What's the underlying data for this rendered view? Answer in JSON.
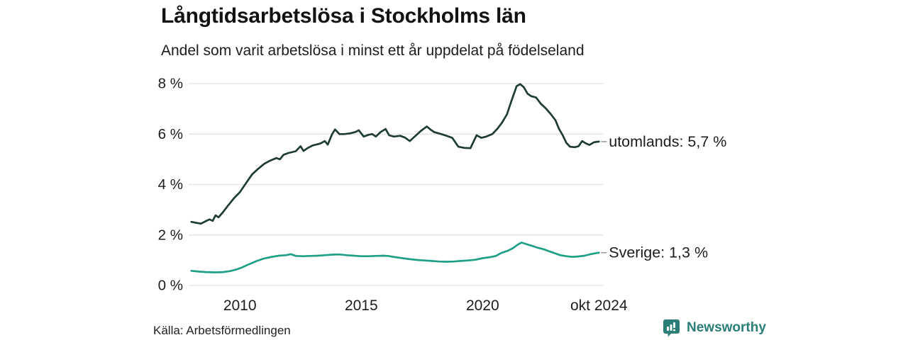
{
  "header": {
    "title": "Långtidsarbetslösa i Stockholms län",
    "subtitle": "Andel som varit arbetslösa i minst ett år uppdelat på födelseland"
  },
  "footer": {
    "source": "Källa: Arbetsförmedlingen",
    "brand": "Newsworthy"
  },
  "colors": {
    "series_utomlands": "#1f3b35",
    "series_sverige": "#1ea087",
    "grid": "#e3e3e3",
    "label_dash": "#999999",
    "brand_teal": "#2b7d78",
    "text": "#1d1d1d"
  },
  "chart_data": {
    "type": "line",
    "title": "Långtidsarbetslösa i Stockholms län",
    "subtitle": "Andel som varit arbetslösa i minst ett år uppdelat på födelseland",
    "source": "Källa: Arbetsförmedlingen",
    "xlabel": "",
    "ylabel": "",
    "grid": "horizontal",
    "legend_position": "end-of-line",
    "xlim": [
      2007.95,
      2024.87
    ],
    "ylim": [
      0,
      8
    ],
    "x_ticks": [
      {
        "t": 2010,
        "label": "2010"
      },
      {
        "t": 2015,
        "label": "2015"
      },
      {
        "t": 2020,
        "label": "2020"
      },
      {
        "t": 2024.79,
        "label": "okt 2024"
      }
    ],
    "y_ticks": [
      {
        "v": 0,
        "label": "0 %"
      },
      {
        "v": 2,
        "label": "2 %"
      },
      {
        "v": 4,
        "label": "4 %"
      },
      {
        "v": 6,
        "label": "6 %"
      },
      {
        "v": 8,
        "label": "8 %"
      }
    ],
    "series": [
      {
        "name": "utomlands",
        "end_label": "utomlands: 5,7 %",
        "end_value": 5.7,
        "color": "#1f3b35",
        "points": [
          [
            2008.0,
            2.52
          ],
          [
            2008.2,
            2.48
          ],
          [
            2008.4,
            2.45
          ],
          [
            2008.6,
            2.55
          ],
          [
            2008.75,
            2.62
          ],
          [
            2008.88,
            2.56
          ],
          [
            2009.0,
            2.78
          ],
          [
            2009.12,
            2.7
          ],
          [
            2009.3,
            2.9
          ],
          [
            2009.5,
            3.15
          ],
          [
            2009.75,
            3.45
          ],
          [
            2010.0,
            3.7
          ],
          [
            2010.25,
            4.05
          ],
          [
            2010.5,
            4.4
          ],
          [
            2010.75,
            4.62
          ],
          [
            2011.0,
            4.82
          ],
          [
            2011.25,
            4.95
          ],
          [
            2011.5,
            5.05
          ],
          [
            2011.65,
            5.0
          ],
          [
            2011.8,
            5.18
          ],
          [
            2012.0,
            5.25
          ],
          [
            2012.3,
            5.32
          ],
          [
            2012.5,
            5.52
          ],
          [
            2012.62,
            5.33
          ],
          [
            2012.8,
            5.45
          ],
          [
            2013.0,
            5.55
          ],
          [
            2013.3,
            5.62
          ],
          [
            2013.5,
            5.72
          ],
          [
            2013.62,
            5.58
          ],
          [
            2013.8,
            6.0
          ],
          [
            2013.92,
            6.18
          ],
          [
            2014.1,
            6.0
          ],
          [
            2014.3,
            6.0
          ],
          [
            2014.55,
            6.03
          ],
          [
            2014.75,
            6.08
          ],
          [
            2014.9,
            6.15
          ],
          [
            2015.1,
            5.9
          ],
          [
            2015.3,
            5.97
          ],
          [
            2015.45,
            6.0
          ],
          [
            2015.6,
            5.9
          ],
          [
            2015.8,
            6.08
          ],
          [
            2016.0,
            6.2
          ],
          [
            2016.15,
            5.95
          ],
          [
            2016.35,
            5.9
          ],
          [
            2016.6,
            5.93
          ],
          [
            2016.8,
            5.86
          ],
          [
            2017.0,
            5.72
          ],
          [
            2017.2,
            5.9
          ],
          [
            2017.45,
            6.12
          ],
          [
            2017.7,
            6.3
          ],
          [
            2017.85,
            6.18
          ],
          [
            2018.0,
            6.08
          ],
          [
            2018.3,
            6.0
          ],
          [
            2018.55,
            5.92
          ],
          [
            2018.75,
            5.85
          ],
          [
            2019.0,
            5.5
          ],
          [
            2019.25,
            5.45
          ],
          [
            2019.5,
            5.44
          ],
          [
            2019.75,
            5.95
          ],
          [
            2019.95,
            5.85
          ],
          [
            2020.15,
            5.9
          ],
          [
            2020.4,
            6.0
          ],
          [
            2020.6,
            6.2
          ],
          [
            2020.8,
            6.45
          ],
          [
            2021.0,
            6.78
          ],
          [
            2021.2,
            7.35
          ],
          [
            2021.4,
            7.9
          ],
          [
            2021.55,
            7.98
          ],
          [
            2021.7,
            7.85
          ],
          [
            2021.85,
            7.6
          ],
          [
            2022.0,
            7.5
          ],
          [
            2022.2,
            7.45
          ],
          [
            2022.4,
            7.2
          ],
          [
            2022.6,
            7.02
          ],
          [
            2022.8,
            6.8
          ],
          [
            2023.0,
            6.55
          ],
          [
            2023.15,
            6.2
          ],
          [
            2023.3,
            5.95
          ],
          [
            2023.45,
            5.65
          ],
          [
            2023.6,
            5.5
          ],
          [
            2023.8,
            5.48
          ],
          [
            2023.95,
            5.52
          ],
          [
            2024.1,
            5.72
          ],
          [
            2024.25,
            5.63
          ],
          [
            2024.4,
            5.57
          ],
          [
            2024.6,
            5.68
          ],
          [
            2024.79,
            5.7
          ]
        ]
      },
      {
        "name": "Sverige",
        "end_label": "Sverige: 1,3 %",
        "end_value": 1.3,
        "color": "#1ea087",
        "points": [
          [
            2008.0,
            0.58
          ],
          [
            2008.3,
            0.55
          ],
          [
            2008.6,
            0.53
          ],
          [
            2009.0,
            0.52
          ],
          [
            2009.3,
            0.53
          ],
          [
            2009.6,
            0.57
          ],
          [
            2009.85,
            0.63
          ],
          [
            2010.1,
            0.72
          ],
          [
            2010.4,
            0.85
          ],
          [
            2010.7,
            0.97
          ],
          [
            2011.0,
            1.07
          ],
          [
            2011.3,
            1.13
          ],
          [
            2011.6,
            1.18
          ],
          [
            2011.9,
            1.2
          ],
          [
            2012.1,
            1.24
          ],
          [
            2012.3,
            1.17
          ],
          [
            2012.6,
            1.16
          ],
          [
            2012.9,
            1.17
          ],
          [
            2013.2,
            1.18
          ],
          [
            2013.5,
            1.2
          ],
          [
            2013.8,
            1.22
          ],
          [
            2014.1,
            1.23
          ],
          [
            2014.4,
            1.2
          ],
          [
            2014.7,
            1.18
          ],
          [
            2015.0,
            1.16
          ],
          [
            2015.3,
            1.16
          ],
          [
            2015.6,
            1.17
          ],
          [
            2015.9,
            1.18
          ],
          [
            2016.1,
            1.17
          ],
          [
            2016.4,
            1.12
          ],
          [
            2016.7,
            1.08
          ],
          [
            2017.0,
            1.04
          ],
          [
            2017.3,
            1.01
          ],
          [
            2017.6,
            0.99
          ],
          [
            2017.9,
            0.97
          ],
          [
            2018.2,
            0.95
          ],
          [
            2018.5,
            0.94
          ],
          [
            2018.8,
            0.95
          ],
          [
            2019.1,
            0.97
          ],
          [
            2019.4,
            0.99
          ],
          [
            2019.7,
            1.02
          ],
          [
            2020.0,
            1.08
          ],
          [
            2020.3,
            1.12
          ],
          [
            2020.55,
            1.17
          ],
          [
            2020.75,
            1.28
          ],
          [
            2020.9,
            1.33
          ],
          [
            2021.05,
            1.38
          ],
          [
            2021.25,
            1.48
          ],
          [
            2021.45,
            1.62
          ],
          [
            2021.6,
            1.7
          ],
          [
            2021.8,
            1.64
          ],
          [
            2022.0,
            1.58
          ],
          [
            2022.25,
            1.5
          ],
          [
            2022.5,
            1.44
          ],
          [
            2022.75,
            1.35
          ],
          [
            2023.0,
            1.27
          ],
          [
            2023.2,
            1.2
          ],
          [
            2023.45,
            1.16
          ],
          [
            2023.7,
            1.13
          ],
          [
            2023.95,
            1.15
          ],
          [
            2024.2,
            1.18
          ],
          [
            2024.45,
            1.24
          ],
          [
            2024.79,
            1.3
          ]
        ]
      }
    ]
  }
}
